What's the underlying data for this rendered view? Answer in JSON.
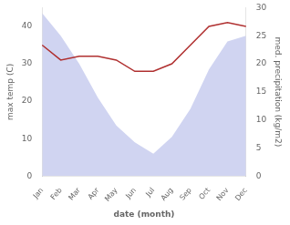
{
  "chart_data": {
    "type": "line",
    "categories": [
      "Jan",
      "Feb",
      "Mar",
      "Apr",
      "May",
      "Jun",
      "Jul",
      "Aug",
      "Sep",
      "Oct",
      "Nov",
      "Dec"
    ],
    "xlabel": "date (month)",
    "ylabel": "max temp (C)",
    "y2label": "med. precipitation (kg/m2)",
    "ylim": [
      0,
      45
    ],
    "yticks": [
      0,
      10,
      20,
      30,
      40
    ],
    "y2lim": [
      0,
      30
    ],
    "y2ticks": [
      0,
      5,
      10,
      15,
      20,
      25,
      30
    ],
    "grid": false,
    "series": [
      {
        "type": "area",
        "axis": "y2",
        "color": "#b0b8e8",
        "values": [
          29,
          25,
          20,
          14,
          9,
          6,
          4,
          7,
          12,
          19,
          24,
          25
        ]
      },
      {
        "type": "line",
        "color": "#b03030",
        "values": [
          35,
          31,
          32,
          32,
          31,
          28,
          28,
          30,
          35,
          40,
          41,
          40
        ]
      }
    ]
  }
}
